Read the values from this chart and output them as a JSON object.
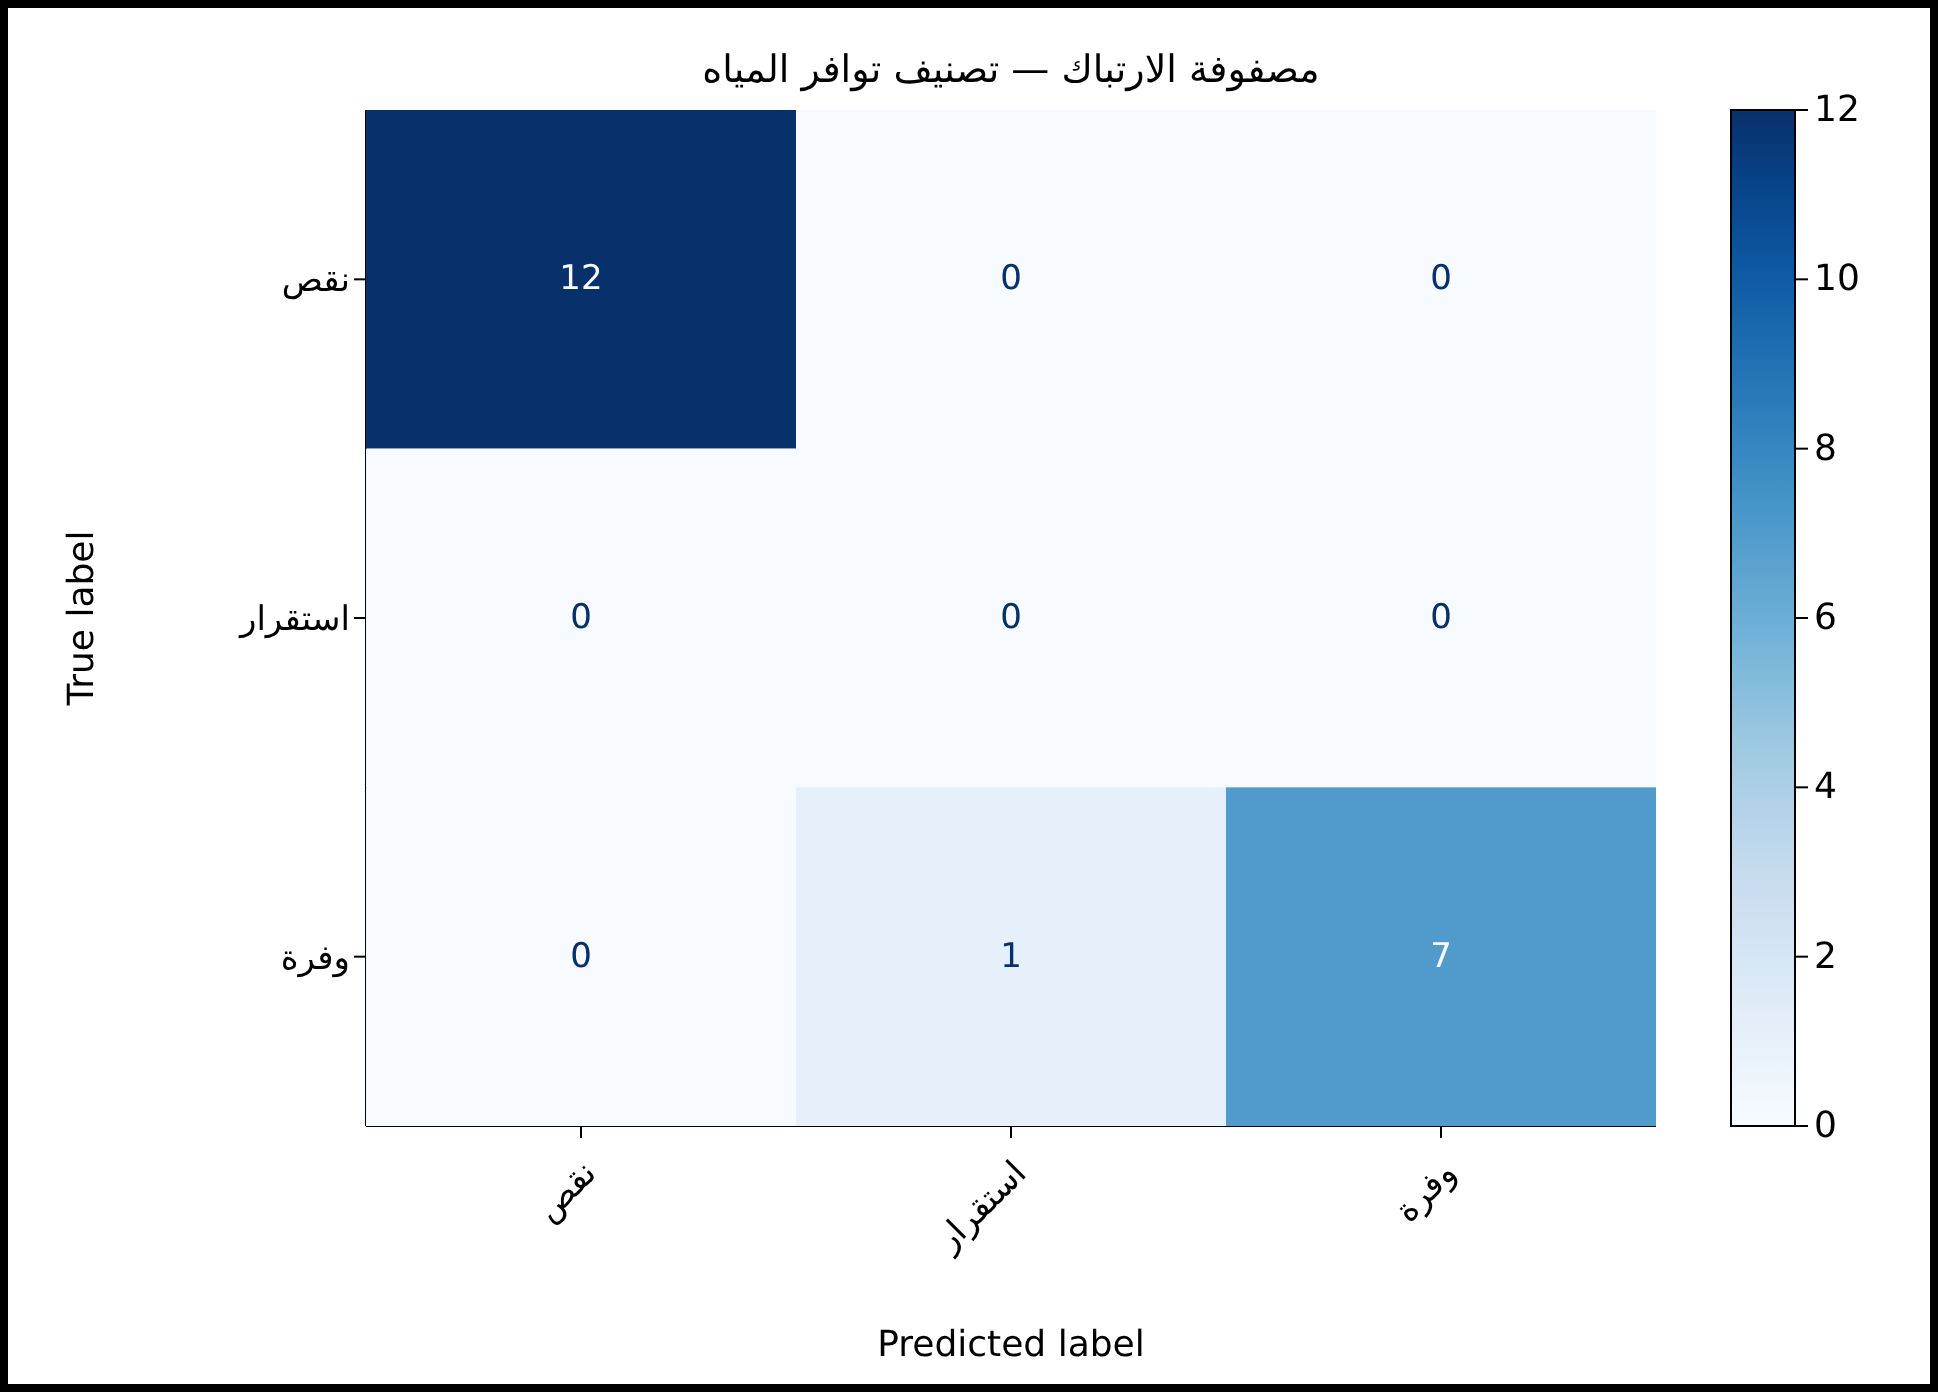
{
  "chart_data": {
    "type": "heatmap",
    "title": "مصفوفة الارتباك — تصنيف توافر المياه",
    "xlabel": "Predicted label",
    "ylabel": "True label",
    "categories": [
      "نقص",
      "استقرار",
      "وفرة"
    ],
    "y_categories": [
      "نقص",
      "استقرار",
      "وفرة"
    ],
    "cells": [
      [
        12,
        0,
        0
      ],
      [
        0,
        0,
        0
      ],
      [
        0,
        1,
        7
      ]
    ],
    "clim": [
      0,
      12
    ],
    "cticks": [
      0,
      2,
      4,
      6,
      8,
      10,
      12
    ],
    "data_labels": true
  }
}
